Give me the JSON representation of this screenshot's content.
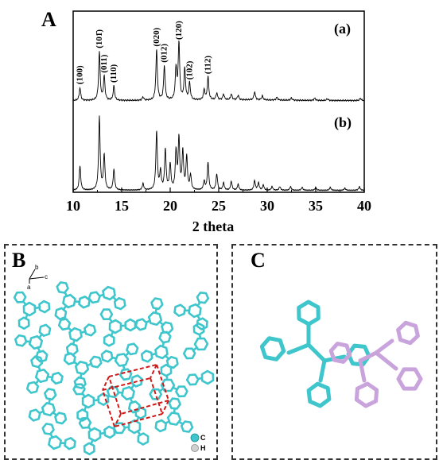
{
  "panel_labels": {
    "a": "A",
    "b": "B",
    "c": "C"
  },
  "chart_data": {
    "type": "line",
    "xlabel": "2 theta",
    "ylabel": "",
    "xlim": [
      10,
      40
    ],
    "xticks": [
      10,
      15,
      20,
      25,
      30,
      35,
      40
    ],
    "series": [
      {
        "name": "(a)",
        "peaks": [
          {
            "x": 10.7,
            "h": 0.22,
            "label": "(100)"
          },
          {
            "x": 12.7,
            "h": 0.85,
            "label": "(101̄)"
          },
          {
            "x": 13.2,
            "h": 0.42,
            "label": "(011)"
          },
          {
            "x": 14.2,
            "h": 0.25,
            "label": "(110)"
          },
          {
            "x": 17.2,
            "h": 0.06,
            "label": ""
          },
          {
            "x": 18.6,
            "h": 0.88,
            "label": "(020)"
          },
          {
            "x": 19.4,
            "h": 0.6,
            "label": "(012)"
          },
          {
            "x": 20.6,
            "h": 0.55,
            "label": ""
          },
          {
            "x": 20.9,
            "h": 1.0,
            "label": "(120)"
          },
          {
            "x": 21.5,
            "h": 0.55,
            "label": ""
          },
          {
            "x": 22.0,
            "h": 0.3,
            "label": "(102)"
          },
          {
            "x": 23.5,
            "h": 0.18,
            "label": ""
          },
          {
            "x": 23.9,
            "h": 0.4,
            "label": "(112)"
          },
          {
            "x": 24.8,
            "h": 0.12,
            "label": ""
          },
          {
            "x": 25.5,
            "h": 0.1,
            "label": ""
          },
          {
            "x": 26.3,
            "h": 0.1,
            "label": ""
          },
          {
            "x": 27.0,
            "h": 0.08,
            "label": ""
          },
          {
            "x": 28.7,
            "h": 0.14,
            "label": ""
          },
          {
            "x": 29.5,
            "h": 0.07,
            "label": ""
          },
          {
            "x": 31.0,
            "h": 0.05,
            "label": ""
          },
          {
            "x": 32.5,
            "h": 0.04,
            "label": ""
          },
          {
            "x": 34.9,
            "h": 0.04,
            "label": ""
          },
          {
            "x": 36.2,
            "h": 0.03,
            "label": ""
          },
          {
            "x": 39.6,
            "h": 0.04,
            "label": ""
          }
        ]
      },
      {
        "name": "(b)",
        "peaks": [
          {
            "x": 10.7,
            "h": 0.33
          },
          {
            "x": 12.7,
            "h": 1.0
          },
          {
            "x": 13.2,
            "h": 0.48
          },
          {
            "x": 14.2,
            "h": 0.28
          },
          {
            "x": 17.2,
            "h": 0.09
          },
          {
            "x": 18.6,
            "h": 0.8
          },
          {
            "x": 19.0,
            "h": 0.25
          },
          {
            "x": 19.5,
            "h": 0.55
          },
          {
            "x": 20.0,
            "h": 0.35
          },
          {
            "x": 20.6,
            "h": 0.52
          },
          {
            "x": 20.9,
            "h": 0.7
          },
          {
            "x": 21.3,
            "h": 0.52
          },
          {
            "x": 21.7,
            "h": 0.45
          },
          {
            "x": 22.1,
            "h": 0.2
          },
          {
            "x": 23.5,
            "h": 0.12
          },
          {
            "x": 23.9,
            "h": 0.38
          },
          {
            "x": 24.8,
            "h": 0.22
          },
          {
            "x": 25.5,
            "h": 0.1
          },
          {
            "x": 26.3,
            "h": 0.12
          },
          {
            "x": 27.0,
            "h": 0.08
          },
          {
            "x": 28.7,
            "h": 0.13
          },
          {
            "x": 29.1,
            "h": 0.1
          },
          {
            "x": 29.6,
            "h": 0.07
          },
          {
            "x": 30.5,
            "h": 0.05
          },
          {
            "x": 31.3,
            "h": 0.05
          },
          {
            "x": 32.4,
            "h": 0.05
          },
          {
            "x": 33.6,
            "h": 0.04
          },
          {
            "x": 35.0,
            "h": 0.04
          },
          {
            "x": 36.5,
            "h": 0.04
          },
          {
            "x": 38.0,
            "h": 0.03
          },
          {
            "x": 39.5,
            "h": 0.05
          }
        ]
      }
    ]
  },
  "panel_b": {
    "axis_b": "b",
    "axis_c": "c",
    "axis_a": "a",
    "legend": [
      {
        "label": "C",
        "color": "#3ec6cc"
      },
      {
        "label": "H",
        "color": "#d0d0d0"
      }
    ],
    "molecule_color": "#3ec6cc",
    "cell_color": "#d01818"
  },
  "panel_c": {
    "color_1": "#3ec6cc",
    "color_2": "#c9a3dc"
  }
}
